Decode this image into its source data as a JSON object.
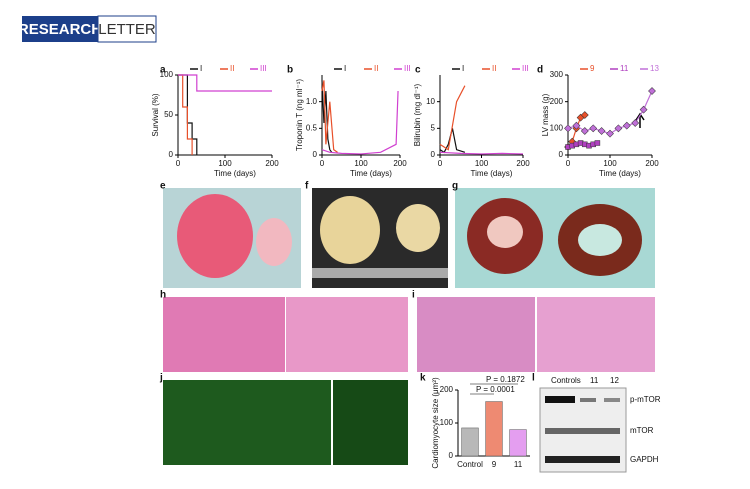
{
  "header": {
    "left": "RESEARCH",
    "right": "LETTER"
  },
  "panel_labels": [
    "a",
    "b",
    "c",
    "d",
    "e",
    "f",
    "g",
    "h",
    "i",
    "j",
    "k",
    "l"
  ],
  "chart_data": [
    {
      "type": "line",
      "ylabel": "Survival (%)",
      "xlabel": "Time (days)",
      "xlim": [
        0,
        200
      ],
      "xticks": [
        0,
        100,
        200
      ],
      "ylim": [
        0,
        100
      ],
      "yticks": [
        0,
        50,
        100
      ],
      "series": [
        {
          "name": "I",
          "color": "#111111",
          "x": [
            0,
            20,
            20,
            30,
            30,
            40,
            40
          ],
          "values": [
            100,
            100,
            40,
            40,
            20,
            20,
            0
          ]
        },
        {
          "name": "II",
          "color": "#e8502a",
          "x": [
            0,
            10,
            10,
            20,
            20,
            30,
            30
          ],
          "values": [
            100,
            100,
            60,
            60,
            20,
            20,
            0
          ]
        },
        {
          "name": "III",
          "color": "#d040d0",
          "x": [
            0,
            40,
            40,
            200
          ],
          "values": [
            100,
            100,
            80,
            80
          ]
        }
      ]
    },
    {
      "type": "line",
      "ylabel": "Troponin T (ng ml⁻¹)",
      "xlabel": "Time (days)",
      "xlim": [
        0,
        200
      ],
      "xticks": [
        0,
        100,
        200
      ],
      "ylim": [
        0,
        1.5
      ],
      "yticks": [
        0,
        0.5,
        {
          "value": 1,
          "label": "1.0"
        }
      ],
      "series": [
        {
          "name": "I",
          "color": "#111111",
          "x": [
            0,
            5,
            10,
            15,
            20,
            25
          ],
          "values": [
            1.4,
            0.6,
            1.2,
            0.3,
            0.1,
            0.05
          ]
        },
        {
          "name": "II",
          "color": "#e8502a",
          "x": [
            0,
            5,
            10,
            20,
            30,
            40
          ],
          "values": [
            1.2,
            1.4,
            0.2,
            1.0,
            0.1,
            0.05
          ]
        },
        {
          "name": "III",
          "color": "#d040d0",
          "x": [
            0,
            20,
            50,
            100,
            150,
            190,
            195
          ],
          "values": [
            0.1,
            0.05,
            0.03,
            0.02,
            0.05,
            0.2,
            1.2
          ]
        }
      ]
    },
    {
      "type": "line",
      "ylabel": "Bilirubin (mg dl⁻¹)",
      "xlabel": "Time (days)",
      "xlim": [
        0,
        200
      ],
      "xticks": [
        0,
        100,
        200
      ],
      "ylim": [
        0,
        15
      ],
      "yticks": [
        0,
        5,
        10
      ],
      "series": [
        {
          "name": "I",
          "color": "#111111",
          "x": [
            0,
            10,
            20,
            30,
            40,
            60
          ],
          "values": [
            1,
            0.5,
            2,
            5,
            1,
            0.5
          ]
        },
        {
          "name": "II",
          "color": "#e8502a",
          "x": [
            0,
            20,
            40,
            60
          ],
          "values": [
            2,
            1,
            10,
            13
          ]
        },
        {
          "name": "III",
          "color": "#d040d0",
          "x": [
            0,
            50,
            100,
            150,
            200
          ],
          "values": [
            0.5,
            0.3,
            0.2,
            0.3,
            0.2
          ]
        }
      ]
    },
    {
      "type": "line",
      "markers": true,
      "ylabel": "LV mass (g)",
      "xlabel": "Time (days)",
      "xlim": [
        0,
        200
      ],
      "xticks": [
        0,
        100,
        200
      ],
      "ylim": [
        0,
        300
      ],
      "yticks": [
        0,
        100,
        200,
        300
      ],
      "series": [
        {
          "name": "9",
          "color": "#e8502a",
          "x": [
            0,
            10,
            20,
            30,
            40
          ],
          "values": [
            30,
            50,
            100,
            140,
            150
          ]
        },
        {
          "name": "11",
          "color": "#b040c0",
          "x": [
            0,
            10,
            20,
            30,
            40,
            50,
            60,
            70
          ],
          "values": [
            30,
            35,
            40,
            45,
            40,
            35,
            40,
            45
          ]
        },
        {
          "name": "13",
          "color": "#c070d8",
          "x": [
            0,
            20,
            40,
            60,
            80,
            100,
            120,
            140,
            160,
            180,
            200
          ],
          "values": [
            100,
            110,
            90,
            100,
            90,
            80,
            100,
            110,
            120,
            170,
            240
          ]
        }
      ]
    },
    {
      "type": "bar",
      "ylabel": "Cardiomyocyte size (μm²)",
      "categories": [
        "Control",
        "9",
        "11"
      ],
      "values": [
        85,
        165,
        80
      ],
      "colors": [
        "#b8b8b8",
        "#ee8a72",
        "#e49ef0"
      ],
      "ylim": [
        0,
        200
      ],
      "yticks": [
        0,
        100,
        200
      ],
      "annotations": [
        "P = 0.1872",
        "P = 0.0001"
      ]
    }
  ],
  "blot": {
    "lanes": [
      "Controls",
      "11",
      "12"
    ],
    "bands": [
      "p-mTOR",
      "mTOR",
      "GAPDH"
    ]
  }
}
